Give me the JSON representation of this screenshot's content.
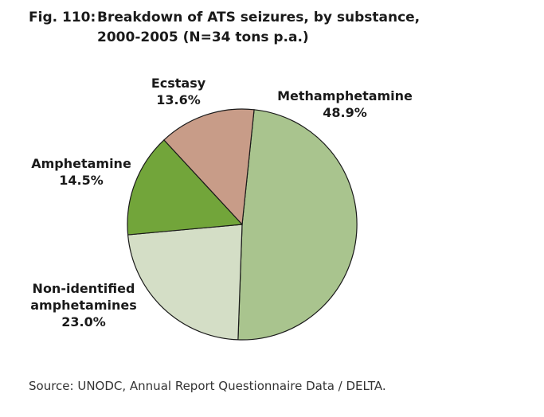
{
  "figure": {
    "number": "Fig. 110:",
    "title_line1": "Breakdown of ATS seizures, by substance,",
    "title_line2": "2000-2005 (N=34 tons p.a.)",
    "source": "Source: UNODC, Annual Report Questionnaire Data / DELTA."
  },
  "chart_data": {
    "type": "pie",
    "title": "Breakdown of ATS seizures, by substance, 2000-2005 (N=34 tons p.a.)",
    "slices": [
      {
        "label_lines": [
          "Methamphetamine"
        ],
        "label": "Methamphetamine",
        "value": 48.9,
        "value_label": "48.9%",
        "color": "#a9c48e"
      },
      {
        "label_lines": [
          "Non-identified",
          "amphetamines"
        ],
        "label": "Non-identified amphetamines",
        "value": 23.0,
        "value_label": "23.0%",
        "color": "#d4dec6"
      },
      {
        "label_lines": [
          "Amphetamine"
        ],
        "label": "Amphetamine",
        "value": 14.5,
        "value_label": "14.5%",
        "color": "#72a53a"
      },
      {
        "label_lines": [
          "Ecstasy"
        ],
        "label": "Ecstasy",
        "value": 13.6,
        "value_label": "13.6%",
        "color": "#c89c88"
      }
    ],
    "start_angle_deg": -84,
    "direction": "clockwise",
    "legend": "none",
    "edge_color": "#1a1a1a"
  }
}
